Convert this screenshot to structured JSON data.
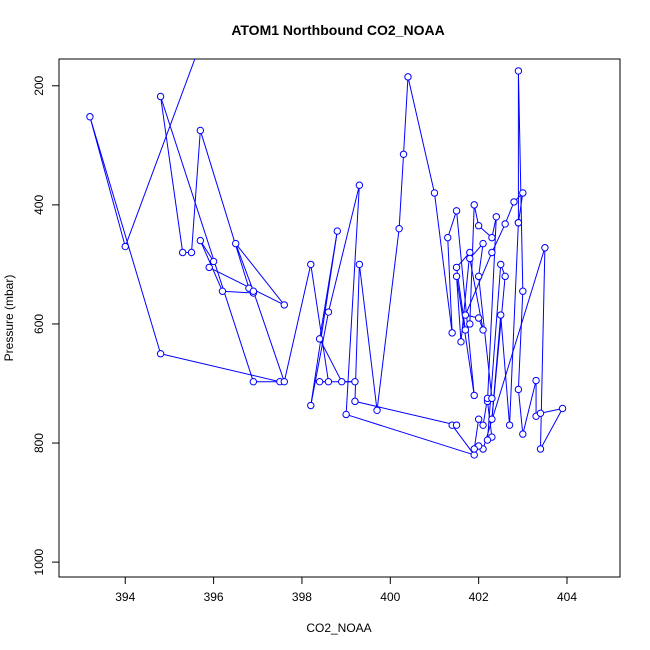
{
  "chart_data": {
    "type": "line",
    "title": "ATOM1 Northbound CO2_NOAA",
    "xlabel": "CO2_NOAA",
    "ylabel": "Pressure (mbar)",
    "xlim": [
      392.5,
      405.2
    ],
    "ylim": [
      1025,
      155
    ],
    "y_reversed": true,
    "x_ticks": [
      394,
      396,
      398,
      400,
      402,
      404
    ],
    "y_ticks": [
      200,
      400,
      600,
      800,
      1000
    ],
    "grid": false,
    "legend": "none",
    "series_color": "#0000ff",
    "marker": "open-circle",
    "points": [
      [
        395.6,
        150
      ],
      [
        394.0,
        470
      ],
      [
        393.2,
        252
      ],
      [
        394.8,
        650
      ],
      [
        397.5,
        697
      ],
      [
        396.9,
        697
      ],
      [
        394.8,
        218
      ],
      [
        395.3,
        480
      ],
      [
        395.5,
        480
      ],
      [
        395.7,
        275
      ],
      [
        396.8,
        540
      ],
      [
        396.9,
        548
      ],
      [
        396.2,
        545
      ],
      [
        395.7,
        460
      ],
      [
        396.0,
        495
      ],
      [
        395.9,
        505
      ],
      [
        397.6,
        568
      ],
      [
        396.5,
        465
      ],
      [
        396.9,
        545
      ],
      [
        397.6,
        697
      ],
      [
        398.2,
        500
      ],
      [
        398.6,
        697
      ],
      [
        398.4,
        697
      ],
      [
        399.2,
        697
      ],
      [
        398.9,
        697
      ],
      [
        398.4,
        625
      ],
      [
        398.8,
        444
      ],
      [
        398.2,
        737
      ],
      [
        398.6,
        580
      ],
      [
        399.3,
        367
      ],
      [
        399.0,
        752
      ],
      [
        401.9,
        820
      ],
      [
        401.4,
        770
      ],
      [
        401.5,
        770
      ],
      [
        399.2,
        730
      ],
      [
        399.3,
        500
      ],
      [
        399.7,
        745
      ],
      [
        400.2,
        440
      ],
      [
        400.3,
        315
      ],
      [
        400.4,
        185
      ],
      [
        401.0,
        380
      ],
      [
        401.4,
        615
      ],
      [
        401.3,
        455
      ],
      [
        401.5,
        410
      ],
      [
        401.9,
        720
      ],
      [
        401.5,
        520
      ],
      [
        401.6,
        630
      ],
      [
        401.8,
        480
      ],
      [
        401.5,
        505
      ],
      [
        401.7,
        610
      ],
      [
        401.8,
        600
      ],
      [
        401.9,
        400
      ],
      [
        402.0,
        435
      ],
      [
        402.3,
        455
      ],
      [
        402.4,
        420
      ],
      [
        402.2,
        730
      ],
      [
        402.3,
        790
      ],
      [
        402.2,
        795
      ],
      [
        402.5,
        500
      ],
      [
        402.6,
        520
      ],
      [
        402.3,
        760
      ],
      [
        402.5,
        585
      ],
      [
        402.7,
        770
      ],
      [
        402.9,
        430
      ],
      [
        402.9,
        175
      ],
      [
        403.0,
        545
      ],
      [
        402.9,
        710
      ],
      [
        403.0,
        785
      ],
      [
        403.3,
        695
      ],
      [
        403.3,
        755
      ],
      [
        403.4,
        750
      ],
      [
        403.9,
        742
      ],
      [
        403.4,
        810
      ],
      [
        403.5,
        472
      ],
      [
        402.1,
        810
      ],
      [
        402.0,
        805
      ],
      [
        401.9,
        810
      ],
      [
        402.0,
        760
      ],
      [
        402.1,
        770
      ],
      [
        402.2,
        725
      ],
      [
        402.3,
        725
      ],
      [
        402.0,
        520
      ],
      [
        402.1,
        465
      ],
      [
        401.8,
        490
      ],
      [
        402.1,
        610
      ],
      [
        402.0,
        590
      ],
      [
        401.7,
        585
      ],
      [
        402.3,
        480
      ],
      [
        402.6,
        432
      ],
      [
        402.8,
        395
      ],
      [
        403.0,
        380
      ],
      [
        402.9,
        430
      ]
    ]
  }
}
